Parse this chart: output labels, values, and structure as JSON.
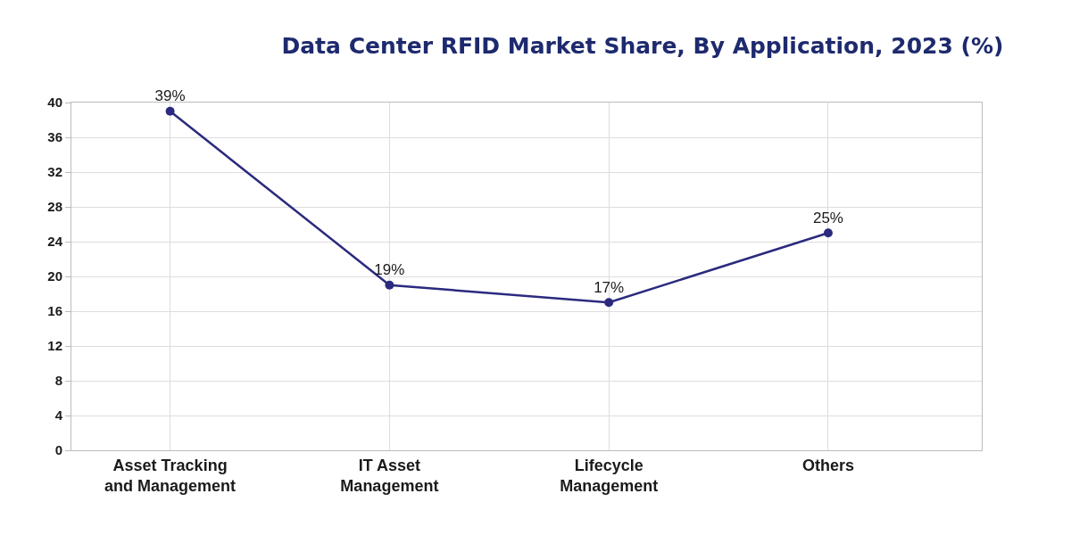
{
  "chart_data": {
    "type": "line",
    "title": "Data Center RFID Market Share, By Application, 2023 (%)",
    "categories": [
      "Asset Tracking and Management",
      "IT Asset Management",
      "Lifecycle Management",
      "Others"
    ],
    "values": [
      39,
      19,
      17,
      25
    ],
    "value_labels": [
      "39%",
      "19%",
      "17%",
      "25%"
    ],
    "color": "#2b2a7e",
    "ylim": [
      0,
      40
    ],
    "yticks": [
      0,
      4,
      8,
      12,
      16,
      20,
      24,
      28,
      32,
      36,
      40
    ],
    "grid": true,
    "marker": "circle",
    "line_style": "solid"
  }
}
